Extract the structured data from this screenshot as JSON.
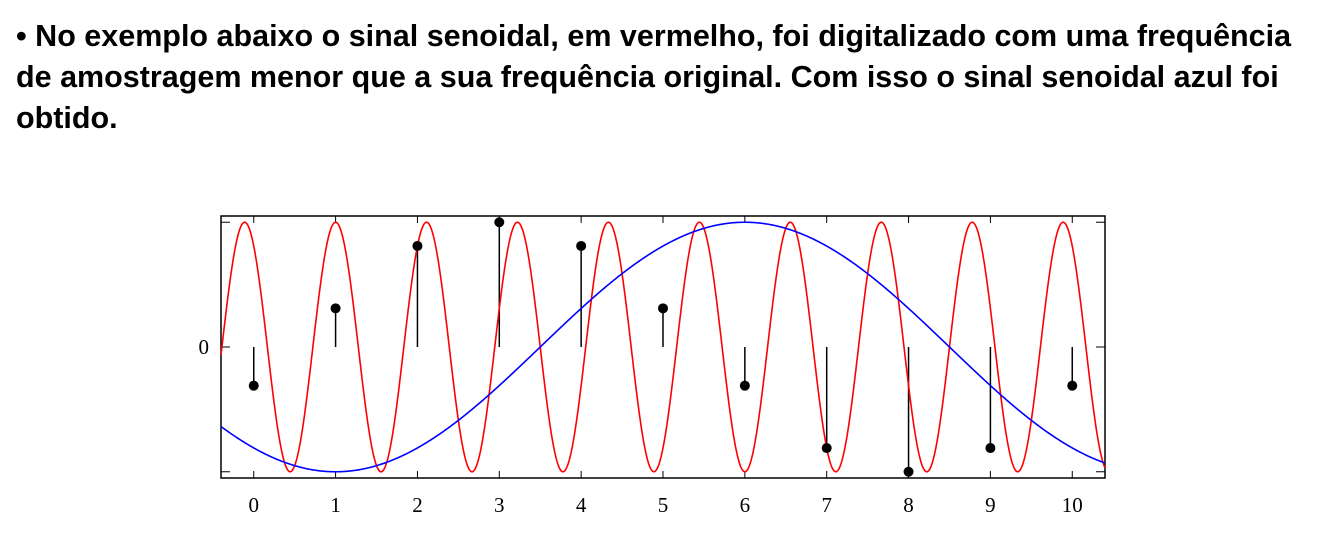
{
  "slide": {
    "bullet": "•",
    "text": "No exemplo abaixo o sinal senoidal, em vermelho, foi digitalizado com uma frequência de amostragem menor que a sua frequência original. Com isso o sinal senoidal azul foi obtido."
  },
  "chart_data": {
    "type": "line",
    "title": "",
    "xlabel": "",
    "ylabel": "",
    "x_ticks": [
      0,
      1,
      2,
      3,
      4,
      5,
      6,
      7,
      8,
      9,
      10
    ],
    "y_ticks": [
      0
    ],
    "xlim": [
      -0.4,
      10.4
    ],
    "ylim": [
      -1.05,
      1.05
    ],
    "grid": false,
    "legend": "none",
    "series": [
      {
        "color": "#ff0000",
        "frequency_cycles_per_unit": 0.9,
        "amplitude": 1,
        "phase_cycles": 0.35
      },
      {
        "color": "#0000ff",
        "frequency_cycles_per_unit": 0.1,
        "amplitude": 1,
        "phase_cycles": 0.65
      }
    ],
    "samples": {
      "color": "#000000",
      "x": [
        0,
        1,
        2,
        3,
        4,
        5,
        6,
        7,
        8,
        9,
        10
      ],
      "y": [
        -0.31,
        0.31,
        0.81,
        1.0,
        0.81,
        0.31,
        -0.31,
        -0.81,
        -1.0,
        -0.81,
        -0.31
      ]
    }
  }
}
